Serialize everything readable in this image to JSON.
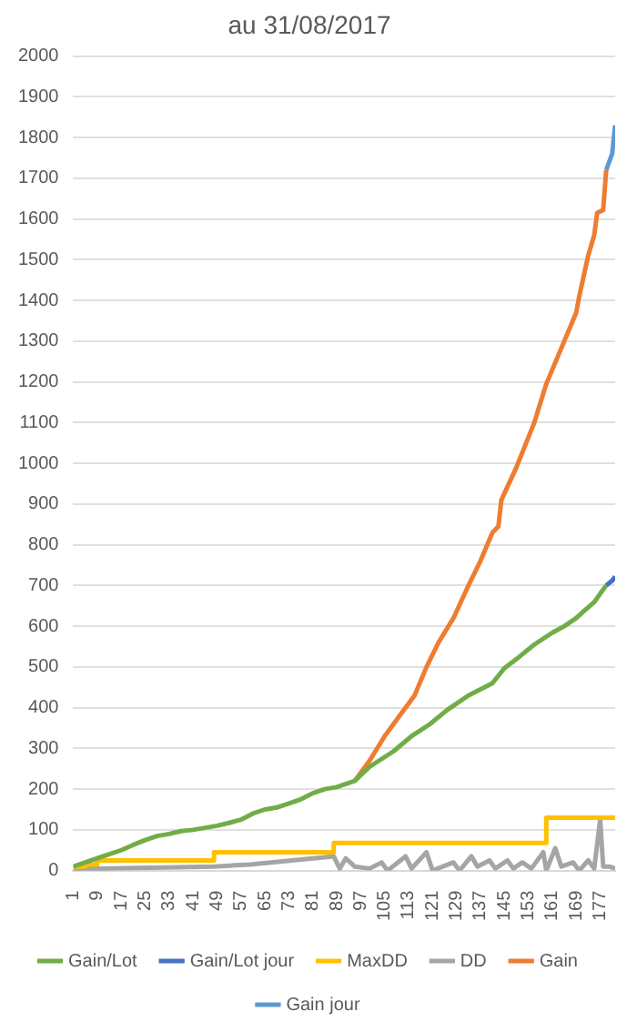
{
  "chart_data": {
    "type": "line",
    "title": "au 31/08/2017",
    "xlim": [
      1,
      182
    ],
    "xticks": [
      1,
      9,
      17,
      25,
      33,
      41,
      49,
      57,
      65,
      73,
      81,
      89,
      97,
      105,
      113,
      121,
      129,
      137,
      145,
      153,
      161,
      169,
      177
    ],
    "ylim": [
      0,
      2000
    ],
    "yticks": [
      0,
      100,
      200,
      300,
      400,
      500,
      600,
      700,
      800,
      900,
      1000,
      1100,
      1200,
      1300,
      1400,
      1500,
      1600,
      1700,
      1800,
      1900,
      2000
    ],
    "grid": "y",
    "legend": "bottom",
    "marker": "none",
    "series": [
      {
        "name": "Gain jour",
        "color": "#5b9bd5",
        "x": [
          179,
          181,
          182
        ],
        "values": [
          1720,
          1760,
          1830
        ]
      },
      {
        "name": "Gain",
        "color": "#ed7d31",
        "x": [
          95,
          100,
          105,
          110,
          115,
          119,
          123,
          128,
          133,
          137,
          141,
          143,
          144,
          149,
          155,
          159,
          165,
          169,
          170,
          173,
          175,
          176,
          178,
          179
        ],
        "values": [
          220,
          270,
          330,
          380,
          430,
          500,
          560,
          620,
          700,
          760,
          830,
          845,
          910,
          990,
          1100,
          1195,
          1300,
          1370,
          1410,
          1510,
          1560,
          1615,
          1622,
          1720
        ]
      },
      {
        "name": "DD",
        "color": "#a5a5a5",
        "x": [
          1,
          10,
          48,
          60,
          88,
          90,
          92,
          95,
          100,
          104,
          106,
          112,
          114,
          119,
          121,
          128,
          130,
          134,
          136,
          140,
          142,
          146,
          148,
          151,
          154,
          158,
          159,
          162,
          164,
          168,
          170,
          173,
          175,
          177,
          178,
          180,
          182
        ],
        "values": [
          5,
          5,
          10,
          15,
          35,
          5,
          30,
          10,
          5,
          20,
          0,
          35,
          5,
          45,
          0,
          20,
          0,
          35,
          10,
          25,
          5,
          25,
          5,
          20,
          5,
          45,
          0,
          55,
          10,
          20,
          0,
          25,
          5,
          125,
          10,
          10,
          5
        ]
      },
      {
        "name": "MaxDD",
        "type": "step",
        "color": "#ffc000",
        "x": [
          1,
          5,
          9,
          48,
          88,
          159,
          177,
          182
        ],
        "values": [
          5,
          10,
          15,
          25,
          45,
          68,
          130,
          130
        ]
      },
      {
        "name": "Gain/Lot jour",
        "color": "#4472c4",
        "x": [
          179,
          181,
          182
        ],
        "values": [
          700,
          712,
          722
        ]
      },
      {
        "name": "Gain/Lot",
        "color": "#70ad47",
        "x": [
          1,
          5,
          9,
          13,
          17,
          21,
          25,
          29,
          33,
          37,
          41,
          45,
          49,
          53,
          57,
          61,
          65,
          69,
          73,
          77,
          81,
          85,
          89,
          95,
          100,
          108,
          114,
          120,
          126,
          133,
          141,
          145,
          150,
          155,
          161,
          165,
          169,
          172,
          175,
          177,
          179
        ],
        "values": [
          10,
          20,
          30,
          40,
          50,
          63,
          75,
          85,
          90,
          97,
          100,
          105,
          110,
          117,
          125,
          140,
          150,
          155,
          165,
          175,
          190,
          200,
          205,
          220,
          255,
          293,
          330,
          359,
          395,
          430,
          460,
          497,
          525,
          555,
          584,
          600,
          620,
          640,
          659,
          680,
          700
        ]
      }
    ]
  }
}
